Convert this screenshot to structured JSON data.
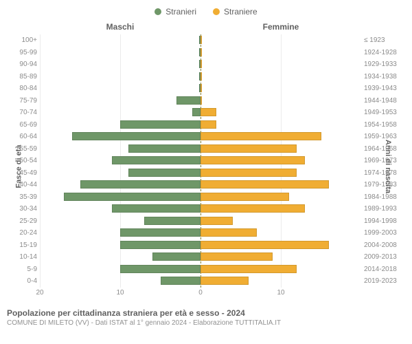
{
  "legend": {
    "male": {
      "label": "Stranieri",
      "color": "#6f9768"
    },
    "female": {
      "label": "Straniere",
      "color": "#f0ad33"
    }
  },
  "headers": {
    "male": "Maschi",
    "female": "Femmine"
  },
  "y_axis_left_title": "Fasce di età",
  "y_axis_right_title": "Anni di nascita",
  "chart": {
    "type": "population-pyramid",
    "max_value": 20,
    "x_ticks_left": [
      20,
      10,
      0
    ],
    "x_ticks_right": [
      0,
      10
    ],
    "bar_border_color": "rgba(0,0,0,0.12)",
    "grid_color": "#ebebeb",
    "center_line_color": "#7e7e34",
    "background_color": "#ffffff",
    "rows": [
      {
        "age": "100+",
        "birth": "≤ 1923",
        "male": 0,
        "female": 0
      },
      {
        "age": "95-99",
        "birth": "1924-1928",
        "male": 0,
        "female": 0
      },
      {
        "age": "90-94",
        "birth": "1929-1933",
        "male": 0,
        "female": 0
      },
      {
        "age": "85-89",
        "birth": "1934-1938",
        "male": 0,
        "female": 0
      },
      {
        "age": "80-84",
        "birth": "1939-1943",
        "male": 0,
        "female": 0
      },
      {
        "age": "75-79",
        "birth": "1944-1948",
        "male": 3,
        "female": 0
      },
      {
        "age": "70-74",
        "birth": "1949-1953",
        "male": 1,
        "female": 2
      },
      {
        "age": "65-69",
        "birth": "1954-1958",
        "male": 10,
        "female": 2
      },
      {
        "age": "60-64",
        "birth": "1959-1963",
        "male": 16,
        "female": 15
      },
      {
        "age": "55-59",
        "birth": "1964-1968",
        "male": 9,
        "female": 12
      },
      {
        "age": "50-54",
        "birth": "1969-1973",
        "male": 11,
        "female": 13
      },
      {
        "age": "45-49",
        "birth": "1974-1978",
        "male": 9,
        "female": 12
      },
      {
        "age": "40-44",
        "birth": "1979-1983",
        "male": 15,
        "female": 16
      },
      {
        "age": "35-39",
        "birth": "1984-1988",
        "male": 17,
        "female": 11
      },
      {
        "age": "30-34",
        "birth": "1989-1993",
        "male": 11,
        "female": 13
      },
      {
        "age": "25-29",
        "birth": "1994-1998",
        "male": 7,
        "female": 4
      },
      {
        "age": "20-24",
        "birth": "1999-2003",
        "male": 10,
        "female": 7
      },
      {
        "age": "15-19",
        "birth": "2004-2008",
        "male": 10,
        "female": 16
      },
      {
        "age": "10-14",
        "birth": "2009-2013",
        "male": 6,
        "female": 9
      },
      {
        "age": "5-9",
        "birth": "2014-2018",
        "male": 10,
        "female": 12
      },
      {
        "age": "0-4",
        "birth": "2019-2023",
        "male": 5,
        "female": 6
      }
    ]
  },
  "footer": {
    "title": "Popolazione per cittadinanza straniera per età e sesso - 2024",
    "subtitle": "COMUNE DI MILETO (VV) - Dati ISTAT al 1° gennaio 2024 - Elaborazione TUTTITALIA.IT"
  }
}
